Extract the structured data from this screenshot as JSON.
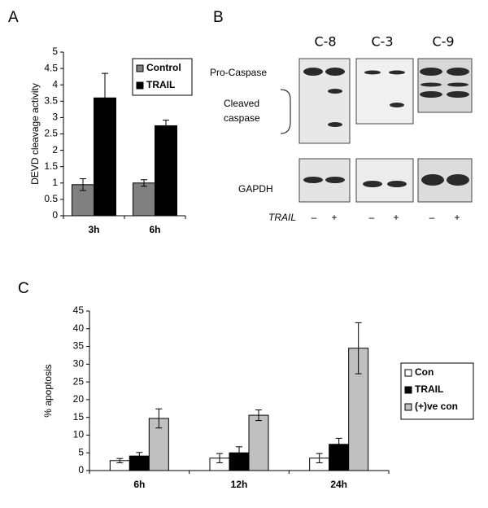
{
  "panels": [
    "A",
    "B",
    "C"
  ],
  "blot": {
    "lanes": [
      "C-8",
      "C-3",
      "C-9"
    ],
    "pro_label": "Pro-Caspase",
    "cleaved_label": [
      "Cleaved",
      "caspase"
    ],
    "gapdh_label": "GAPDH",
    "treatment_label": "TRAIL",
    "treatment_signs": [
      "–",
      "+",
      "–",
      "+",
      "–",
      "+"
    ]
  },
  "chart_data": [
    {
      "type": "bar",
      "ylabel": "DEVD cleavage activity",
      "categories": [
        "3h",
        "6h"
      ],
      "series": [
        {
          "name": "Control",
          "color": "#808080",
          "values": [
            0.95,
            1.0
          ],
          "errors": [
            0.18,
            0.1
          ]
        },
        {
          "name": "TRAIL",
          "color": "#000000",
          "values": [
            3.6,
            2.75
          ],
          "errors": [
            0.75,
            0.17
          ]
        }
      ],
      "ylim": [
        0,
        5
      ],
      "yticks": [
        0,
        0.5,
        1,
        1.5,
        2,
        2.5,
        3,
        3.5,
        4,
        4.5,
        5
      ],
      "legend": "top-right"
    },
    {
      "type": "bar",
      "ylabel": "% apoptosis",
      "categories": [
        "6h",
        "12h",
        "24h"
      ],
      "series": [
        {
          "name": "Con",
          "color": "#ffffff",
          "values": [
            2.8,
            3.5,
            3.5
          ],
          "errors": [
            0.6,
            1.3,
            1.3
          ]
        },
        {
          "name": "TRAIL",
          "color": "#000000",
          "values": [
            4.1,
            5.0,
            7.4
          ],
          "errors": [
            1.0,
            1.7,
            1.7
          ]
        },
        {
          "name": "(+)ve con",
          "color": "#c0c0c0",
          "values": [
            14.7,
            15.6,
            34.5
          ],
          "errors": [
            2.7,
            1.5,
            7.2
          ]
        }
      ],
      "ylim": [
        0,
        45
      ],
      "yticks": [
        0,
        5,
        10,
        15,
        20,
        25,
        30,
        35,
        40,
        45
      ],
      "legend": "right"
    }
  ]
}
